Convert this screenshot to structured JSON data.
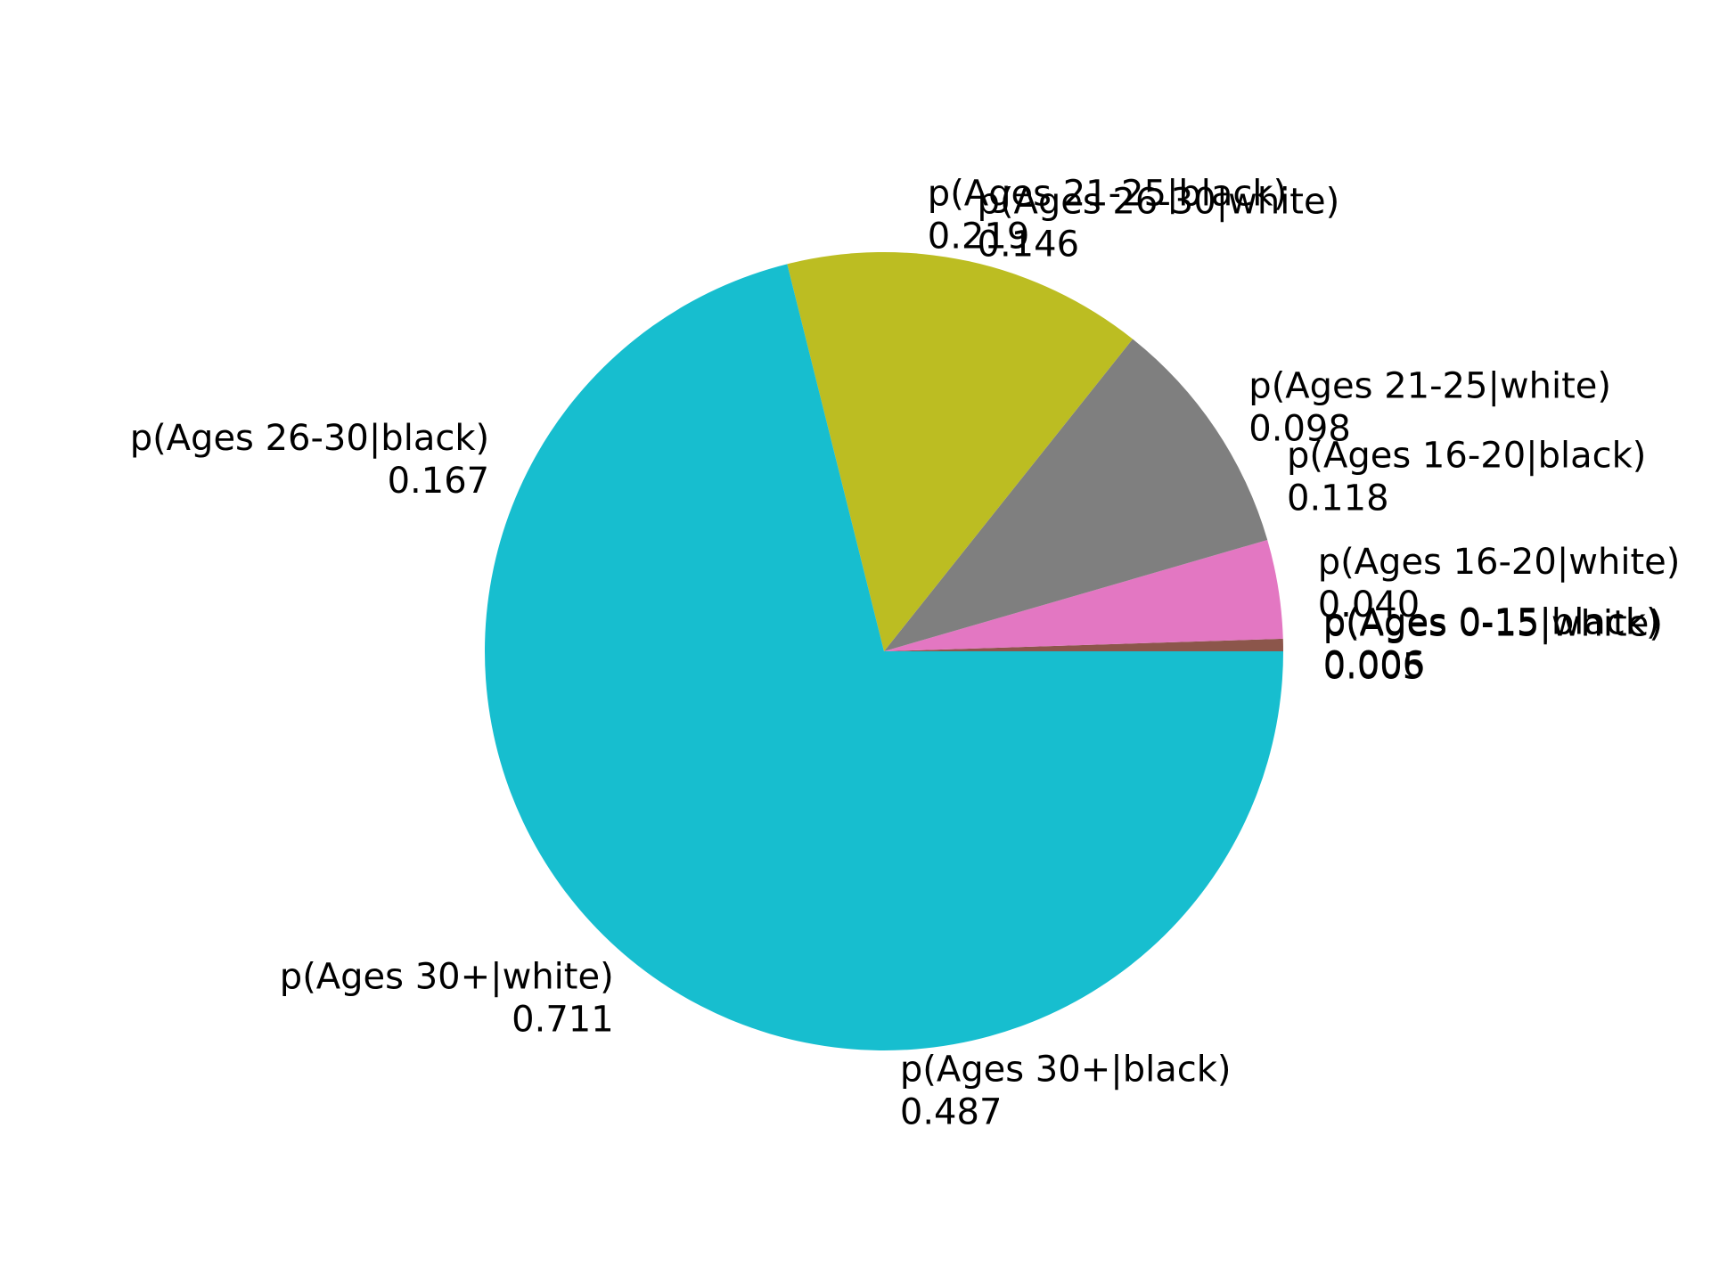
{
  "chart_data": {
    "type": "pie",
    "title": "",
    "series": [
      {
        "name": "white",
        "slices": [
          {
            "label": "p(Ages 0-15|white)",
            "value": 0.005,
            "value_label": "0.005",
            "color": "#8c564b"
          },
          {
            "label": "p(Ages 16-20|white)",
            "value": 0.04,
            "value_label": "0.040",
            "color": "#e377c2"
          },
          {
            "label": "p(Ages 21-25|white)",
            "value": 0.098,
            "value_label": "0.098",
            "color": "#7f7f7f"
          },
          {
            "label": "p(Ages 26-30|white)",
            "value": 0.146,
            "value_label": "0.146",
            "color": "#bcbd22"
          },
          {
            "label": "p(Ages 30+|white)",
            "value": 0.711,
            "value_label": "0.711",
            "color": "#17becf"
          }
        ]
      },
      {
        "name": "black",
        "slices": [
          {
            "label": "p(Ages 0-15|black)",
            "value": 0.006,
            "value_label": "0.006"
          },
          {
            "label": "p(Ages 16-20|black)",
            "value": 0.118,
            "value_label": "0.118"
          },
          {
            "label": "p(Ages 21-25|black)",
            "value": 0.219,
            "value_label": "0.219"
          },
          {
            "label": "p(Ages 26-30|black)",
            "value": 0.167,
            "value_label": "0.167"
          },
          {
            "label": "p(Ages 30+|black)",
            "value": 0.487,
            "value_label": "0.487"
          }
        ]
      }
    ]
  }
}
